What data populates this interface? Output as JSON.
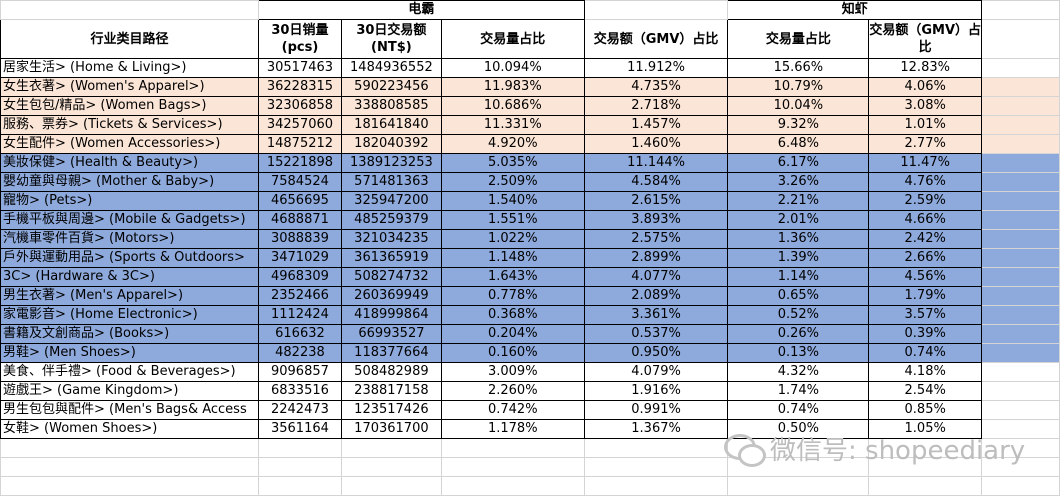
{
  "groups": {
    "dianba": "电霸",
    "zhixia": "知虾"
  },
  "headers": {
    "category": "行业类目路径",
    "sales30": "30日销量\n(pcs)",
    "gmv30": "30日交易额\n(NT$)",
    "qty_share_a": "交易量占比",
    "gmv_share_a": "交易额（GMV）占比",
    "qty_share_b": "交易量占比",
    "gmv_share_b": "交易额（GMV）占比"
  },
  "rows": [
    {
      "style": "white",
      "cat": "居家生活> (Home & Living>)",
      "sales": "30517463",
      "gmv": "1484936552",
      "qa": "10.094%",
      "ga": "11.912%",
      "qb": "15.66%",
      "gb": "12.83%"
    },
    {
      "style": "peach",
      "cat": "女生衣著> (Women's Apparel>)",
      "sales": "36228315",
      "gmv": "590223456",
      "qa": "11.983%",
      "ga": "4.735%",
      "qb": "10.79%",
      "gb": "4.06%"
    },
    {
      "style": "peach",
      "cat": "女生包包/精品> (Women Bags>)",
      "sales": "32306858",
      "gmv": "338808585",
      "qa": "10.686%",
      "ga": "2.718%",
      "qb": "10.04%",
      "gb": "3.08%"
    },
    {
      "style": "peach",
      "cat": "服務、票券> (Tickets & Services>)",
      "sales": "34257060",
      "gmv": "181641840",
      "qa": "11.331%",
      "ga": "1.457%",
      "qb": "9.32%",
      "gb": "1.01%"
    },
    {
      "style": "peach",
      "cat": "女生配件> (Women Accessories>)",
      "sales": "14875212",
      "gmv": "182040392",
      "qa": "4.920%",
      "ga": "1.460%",
      "qb": "6.48%",
      "gb": "2.77%"
    },
    {
      "style": "blue",
      "cat": "美妝保健> (Health & Beauty>)",
      "sales": "15221898",
      "gmv": "1389123253",
      "qa": "5.035%",
      "ga": "11.144%",
      "qb": "6.17%",
      "gb": "11.47%"
    },
    {
      "style": "blue",
      "cat": "嬰幼童與母親> (Mother & Baby>)",
      "sales": "7584524",
      "gmv": "571481363",
      "qa": "2.509%",
      "ga": "4.584%",
      "qb": "3.26%",
      "gb": "4.76%"
    },
    {
      "style": "blue",
      "cat": "寵物> (Pets>)",
      "sales": "4656695",
      "gmv": "325947200",
      "qa": "1.540%",
      "ga": "2.615%",
      "qb": "2.21%",
      "gb": "2.59%"
    },
    {
      "style": "blue",
      "cat": "手機平板與周邊> (Mobile & Gadgets>)",
      "sales": "4688871",
      "gmv": "485259379",
      "qa": "1.551%",
      "ga": "3.893%",
      "qb": "2.01%",
      "gb": "4.66%"
    },
    {
      "style": "blue",
      "cat": "汽機車零件百貨> (Motors>)",
      "sales": "3088839",
      "gmv": "321034235",
      "qa": "1.022%",
      "ga": "2.575%",
      "qb": "1.36%",
      "gb": "2.42%"
    },
    {
      "style": "blue",
      "cat": "戶外與運動用品> (Sports & Outdoors>",
      "sales": "3471029",
      "gmv": "361365919",
      "qa": "1.148%",
      "ga": "2.899%",
      "qb": "1.39%",
      "gb": "2.66%"
    },
    {
      "style": "blue",
      "cat": "3C> (Hardware & 3C>)",
      "sales": "4968309",
      "gmv": "508274732",
      "qa": "1.643%",
      "ga": "4.077%",
      "qb": "1.14%",
      "gb": "4.56%"
    },
    {
      "style": "blue",
      "cat": "男生衣著> (Men's Apparel>)",
      "sales": "2352466",
      "gmv": "260369949",
      "qa": "0.778%",
      "ga": "2.089%",
      "qb": "0.65%",
      "gb": "1.79%"
    },
    {
      "style": "blue",
      "cat": "家電影音> (Home Electronic>)",
      "sales": "1112424",
      "gmv": "418999864",
      "qa": "0.368%",
      "ga": "3.361%",
      "qb": "0.52%",
      "gb": "3.57%"
    },
    {
      "style": "blue",
      "cat": "書籍及文創商品> (Books>)",
      "sales": "616632",
      "gmv": "66993527",
      "qa": "0.204%",
      "ga": "0.537%",
      "qb": "0.26%",
      "gb": "0.39%"
    },
    {
      "style": "blue",
      "cat": "男鞋> (Men Shoes>)",
      "sales": "482238",
      "gmv": "118377664",
      "qa": "0.160%",
      "ga": "0.950%",
      "qb": "0.13%",
      "gb": "0.74%"
    },
    {
      "style": "white",
      "cat": "美食、伴手禮> (Food & Beverages>)",
      "sales": "9096857",
      "gmv": "508482989",
      "qa": "3.009%",
      "ga": "4.079%",
      "qb": "4.32%",
      "gb": "4.18%"
    },
    {
      "style": "white",
      "cat": "遊戲王> (Game Kingdom>)",
      "sales": "6833516",
      "gmv": "238817158",
      "qa": "2.260%",
      "ga": "1.916%",
      "qb": "1.74%",
      "gb": "2.54%"
    },
    {
      "style": "white",
      "cat": "男生包包與配件> (Men's Bags& Access",
      "sales": "2242473",
      "gmv": "123517426",
      "qa": "0.742%",
      "ga": "0.991%",
      "qb": "0.74%",
      "gb": "0.85%"
    },
    {
      "style": "white",
      "cat": "女鞋> (Women Shoes>)",
      "sales": "3561164",
      "gmv": "170361700",
      "qa": "1.178%",
      "ga": "1.367%",
      "qb": "0.50%",
      "gb": "1.05%"
    }
  ],
  "watermark": {
    "text": "微信号: shopeediary",
    "icon": "wechat-icon"
  },
  "colors": {
    "peach": "#fbe5d6",
    "blue": "#8ea9db"
  }
}
